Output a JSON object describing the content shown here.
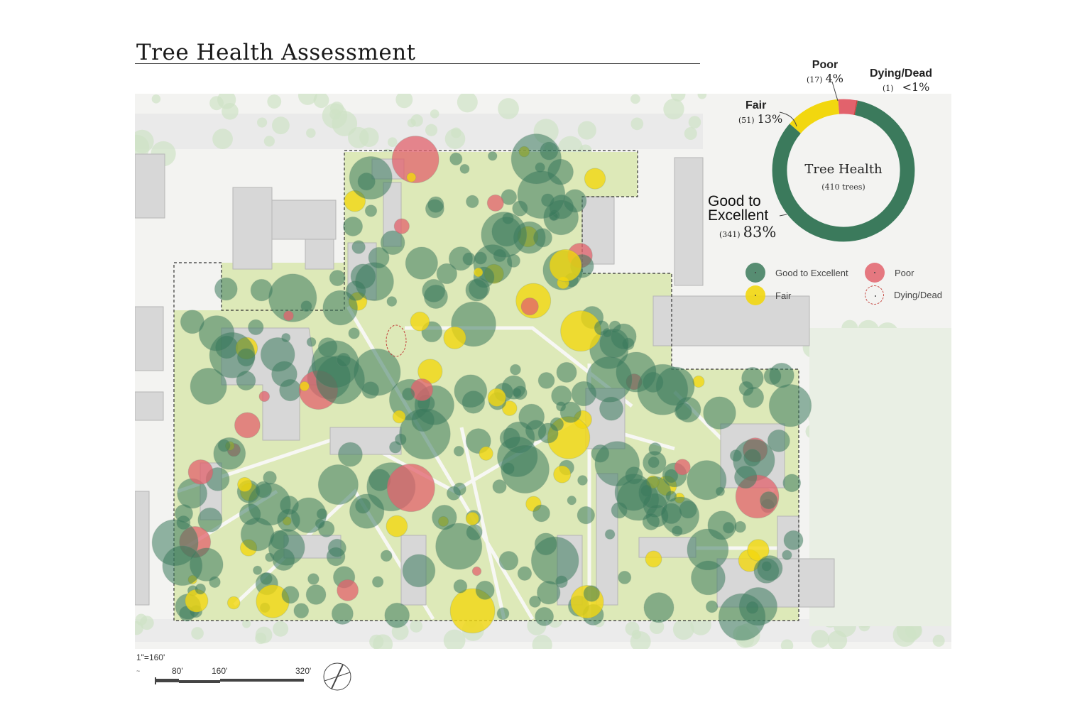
{
  "title": "Tree Health Assessment",
  "colors": {
    "good": "#3b7a5c",
    "fair": "#f2d70f",
    "poor": "#e2626c",
    "dead": "#c4443e",
    "lawn": "#dbe9b4",
    "building": "#d9d9d9"
  },
  "donut": {
    "center_title": "Tree Health",
    "center_sub": "(410 trees)",
    "segments": [
      {
        "key": "good",
        "label": "Good to Excellent",
        "count": "(341)",
        "count_value": 341,
        "percent": "83%"
      },
      {
        "key": "fair",
        "label": "Fair",
        "count": "(51)",
        "count_value": 51,
        "percent": "13%"
      },
      {
        "key": "poor",
        "label": "Poor",
        "count": "(17)",
        "count_value": 17,
        "percent": "4%"
      },
      {
        "key": "dead",
        "label": "Dying/Dead",
        "count": "(1)",
        "count_value": 1,
        "percent": "<1%"
      }
    ],
    "good_label_line1": "Good to",
    "good_label_line2": "Excellent"
  },
  "legend": [
    {
      "key": "good",
      "label": "Good to Excellent"
    },
    {
      "key": "poor",
      "label": "Poor"
    },
    {
      "key": "fair",
      "label": "Fair"
    },
    {
      "key": "dead",
      "label": "Dying/Dead"
    }
  ],
  "scale": {
    "ratio": "1\"=160'",
    "ticks": [
      "80'",
      "160'",
      "320'"
    ]
  },
  "icons": {
    "north_arrow": "north-arrow-icon",
    "scale_bar": "scale-bar-icon"
  }
}
